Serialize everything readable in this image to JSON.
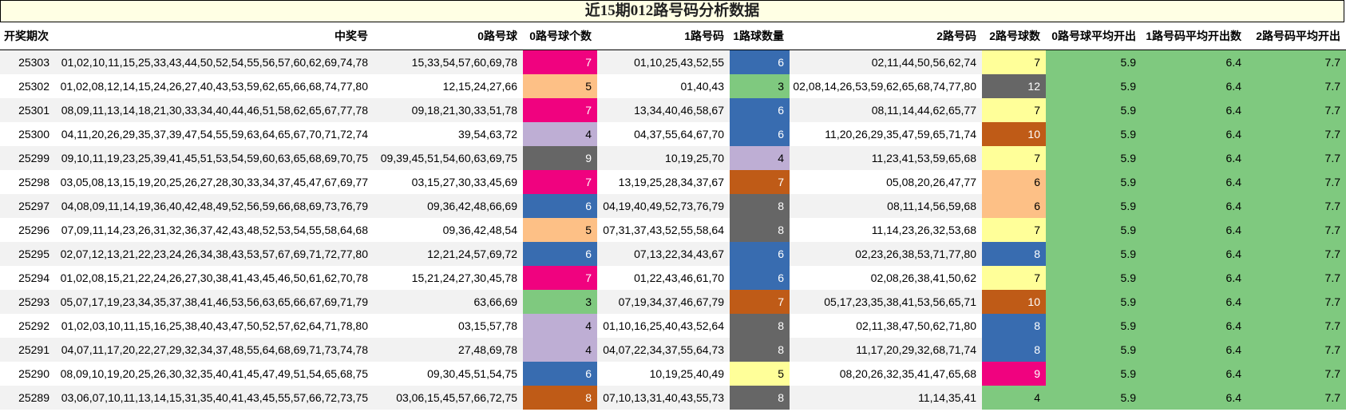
{
  "title": "近15期012路号码分析数据",
  "headers": [
    "开奖期次",
    "中奖号",
    "0路号球",
    "0路号球个数",
    "1路号码",
    "1路球数量",
    "2路号码",
    "2路号球数",
    "0路号球平均开出",
    "1路号码平均开出数",
    "2路号码平均开出"
  ],
  "count_colors": {
    "3": "#7fc97f",
    "4": "#beaed4",
    "5": "#fdc086",
    "6": "#386cb0",
    "7": "#f0027f",
    "8": "#666666",
    "9": "#666666",
    "10": "#bf5b17",
    "12": "#666666"
  },
  "rows": [
    {
      "period": "25303",
      "numbers": "01,02,10,11,15,25,33,43,44,50,52,54,55,56,57,60,62,69,74,78",
      "r0": "15,33,54,57,60,69,78",
      "c0": "7",
      "c0_color": "#f0027f",
      "r1": "01,10,25,43,52,55",
      "c1": "6",
      "c1_color": "#386cb0",
      "r2": "02,11,44,50,56,62,74",
      "c2": "7",
      "c2_color": "#ffff99",
      "avg0": "5.9",
      "avg1": "6.4",
      "avg2": "7.7"
    },
    {
      "period": "25302",
      "numbers": "01,02,08,12,14,15,24,26,27,40,43,53,59,62,65,66,68,74,77,80",
      "r0": "12,15,24,27,66",
      "c0": "5",
      "c0_color": "#fdc086",
      "r1": "01,40,43",
      "c1": "3",
      "c1_color": "#7fc97f",
      "r2": "02,08,14,26,53,59,62,65,68,74,77,80",
      "c2": "12",
      "c2_color": "#666666",
      "avg0": "5.9",
      "avg1": "6.4",
      "avg2": "7.7"
    },
    {
      "period": "25301",
      "numbers": "08,09,11,13,14,18,21,30,33,34,40,44,46,51,58,62,65,67,77,78",
      "r0": "09,18,21,30,33,51,78",
      "c0": "7",
      "c0_color": "#f0027f",
      "r1": "13,34,40,46,58,67",
      "c1": "6",
      "c1_color": "#386cb0",
      "r2": "08,11,14,44,62,65,77",
      "c2": "7",
      "c2_color": "#ffff99",
      "avg0": "5.9",
      "avg1": "6.4",
      "avg2": "7.7"
    },
    {
      "period": "25300",
      "numbers": "04,11,20,26,29,35,37,39,47,54,55,59,63,64,65,67,70,71,72,74",
      "r0": "39,54,63,72",
      "c0": "4",
      "c0_color": "#beaed4",
      "r1": "04,37,55,64,67,70",
      "c1": "6",
      "c1_color": "#386cb0",
      "r2": "11,20,26,29,35,47,59,65,71,74",
      "c2": "10",
      "c2_color": "#bf5b17",
      "avg0": "5.9",
      "avg1": "6.4",
      "avg2": "7.7"
    },
    {
      "period": "25299",
      "numbers": "09,10,11,19,23,25,39,41,45,51,53,54,59,60,63,65,68,69,70,75",
      "r0": "09,39,45,51,54,60,63,69,75",
      "c0": "9",
      "c0_color": "#666666",
      "r1": "10,19,25,70",
      "c1": "4",
      "c1_color": "#beaed4",
      "r2": "11,23,41,53,59,65,68",
      "c2": "7",
      "c2_color": "#ffff99",
      "avg0": "5.9",
      "avg1": "6.4",
      "avg2": "7.7"
    },
    {
      "period": "25298",
      "numbers": "03,05,08,13,15,19,20,25,26,27,28,30,33,34,37,45,47,67,69,77",
      "r0": "03,15,27,30,33,45,69",
      "c0": "7",
      "c0_color": "#f0027f",
      "r1": "13,19,25,28,34,37,67",
      "c1": "7",
      "c1_color": "#bf5b17",
      "r2": "05,08,20,26,47,77",
      "c2": "6",
      "c2_color": "#fdc086",
      "avg0": "5.9",
      "avg1": "6.4",
      "avg2": "7.7"
    },
    {
      "period": "25297",
      "numbers": "04,08,09,11,14,19,36,40,42,48,49,52,56,59,66,68,69,73,76,79",
      "r0": "09,36,42,48,66,69",
      "c0": "6",
      "c0_color": "#386cb0",
      "r1": "04,19,40,49,52,73,76,79",
      "c1": "8",
      "c1_color": "#666666",
      "r2": "08,11,14,56,59,68",
      "c2": "6",
      "c2_color": "#fdc086",
      "avg0": "5.9",
      "avg1": "6.4",
      "avg2": "7.7"
    },
    {
      "period": "25296",
      "numbers": "07,09,11,14,23,26,31,32,36,37,42,43,48,52,53,54,55,58,64,68",
      "r0": "09,36,42,48,54",
      "c0": "5",
      "c0_color": "#fdc086",
      "r1": "07,31,37,43,52,55,58,64",
      "c1": "8",
      "c1_color": "#666666",
      "r2": "11,14,23,26,32,53,68",
      "c2": "7",
      "c2_color": "#ffff99",
      "avg0": "5.9",
      "avg1": "6.4",
      "avg2": "7.7"
    },
    {
      "period": "25295",
      "numbers": "02,07,12,13,21,22,23,24,26,34,38,43,53,57,67,69,71,72,77,80",
      "r0": "12,21,24,57,69,72",
      "c0": "6",
      "c0_color": "#386cb0",
      "r1": "07,13,22,34,43,67",
      "c1": "6",
      "c1_color": "#386cb0",
      "r2": "02,23,26,38,53,71,77,80",
      "c2": "8",
      "c2_color": "#386cb0",
      "avg0": "5.9",
      "avg1": "6.4",
      "avg2": "7.7"
    },
    {
      "period": "25294",
      "numbers": "01,02,08,15,21,22,24,26,27,30,38,41,43,45,46,50,61,62,70,78",
      "r0": "15,21,24,27,30,45,78",
      "c0": "7",
      "c0_color": "#f0027f",
      "r1": "01,22,43,46,61,70",
      "c1": "6",
      "c1_color": "#386cb0",
      "r2": "02,08,26,38,41,50,62",
      "c2": "7",
      "c2_color": "#ffff99",
      "avg0": "5.9",
      "avg1": "6.4",
      "avg2": "7.7"
    },
    {
      "period": "25293",
      "numbers": "05,07,17,19,23,34,35,37,38,41,46,53,56,63,65,66,67,69,71,79",
      "r0": "63,66,69",
      "c0": "3",
      "c0_color": "#7fc97f",
      "r1": "07,19,34,37,46,67,79",
      "c1": "7",
      "c1_color": "#bf5b17",
      "r2": "05,17,23,35,38,41,53,56,65,71",
      "c2": "10",
      "c2_color": "#bf5b17",
      "avg0": "5.9",
      "avg1": "6.4",
      "avg2": "7.7"
    },
    {
      "period": "25292",
      "numbers": "01,02,03,10,11,15,16,25,38,40,43,47,50,52,57,62,64,71,78,80",
      "r0": "03,15,57,78",
      "c0": "4",
      "c0_color": "#beaed4",
      "r1": "01,10,16,25,40,43,52,64",
      "c1": "8",
      "c1_color": "#666666",
      "r2": "02,11,38,47,50,62,71,80",
      "c2": "8",
      "c2_color": "#386cb0",
      "avg0": "5.9",
      "avg1": "6.4",
      "avg2": "7.7"
    },
    {
      "period": "25291",
      "numbers": "04,07,11,17,20,22,27,29,32,34,37,48,55,64,68,69,71,73,74,78",
      "r0": "27,48,69,78",
      "c0": "4",
      "c0_color": "#beaed4",
      "r1": "04,07,22,34,37,55,64,73",
      "c1": "8",
      "c1_color": "#666666",
      "r2": "11,17,20,29,32,68,71,74",
      "c2": "8",
      "c2_color": "#386cb0",
      "avg0": "5.9",
      "avg1": "6.4",
      "avg2": "7.7"
    },
    {
      "period": "25290",
      "numbers": "08,09,10,19,20,25,26,30,32,35,40,41,45,47,49,51,54,65,68,75",
      "r0": "09,30,45,51,54,75",
      "c0": "6",
      "c0_color": "#386cb0",
      "r1": "10,19,25,40,49",
      "c1": "5",
      "c1_color": "#ffff99",
      "r2": "08,20,26,32,35,41,47,65,68",
      "c2": "9",
      "c2_color": "#f0027f",
      "avg0": "5.9",
      "avg1": "6.4",
      "avg2": "7.7"
    },
    {
      "period": "25289",
      "numbers": "03,06,07,10,11,13,14,15,31,35,40,41,43,45,55,57,66,72,73,75",
      "r0": "03,06,15,45,57,66,72,75",
      "c0": "8",
      "c0_color": "#bf5b17",
      "r1": "07,10,13,31,40,43,55,73",
      "c1": "8",
      "c1_color": "#666666",
      "r2": "11,14,35,41",
      "c2": "4",
      "c2_color": "#7fc97f",
      "avg0": "5.9",
      "avg1": "6.4",
      "avg2": "7.7"
    }
  ]
}
